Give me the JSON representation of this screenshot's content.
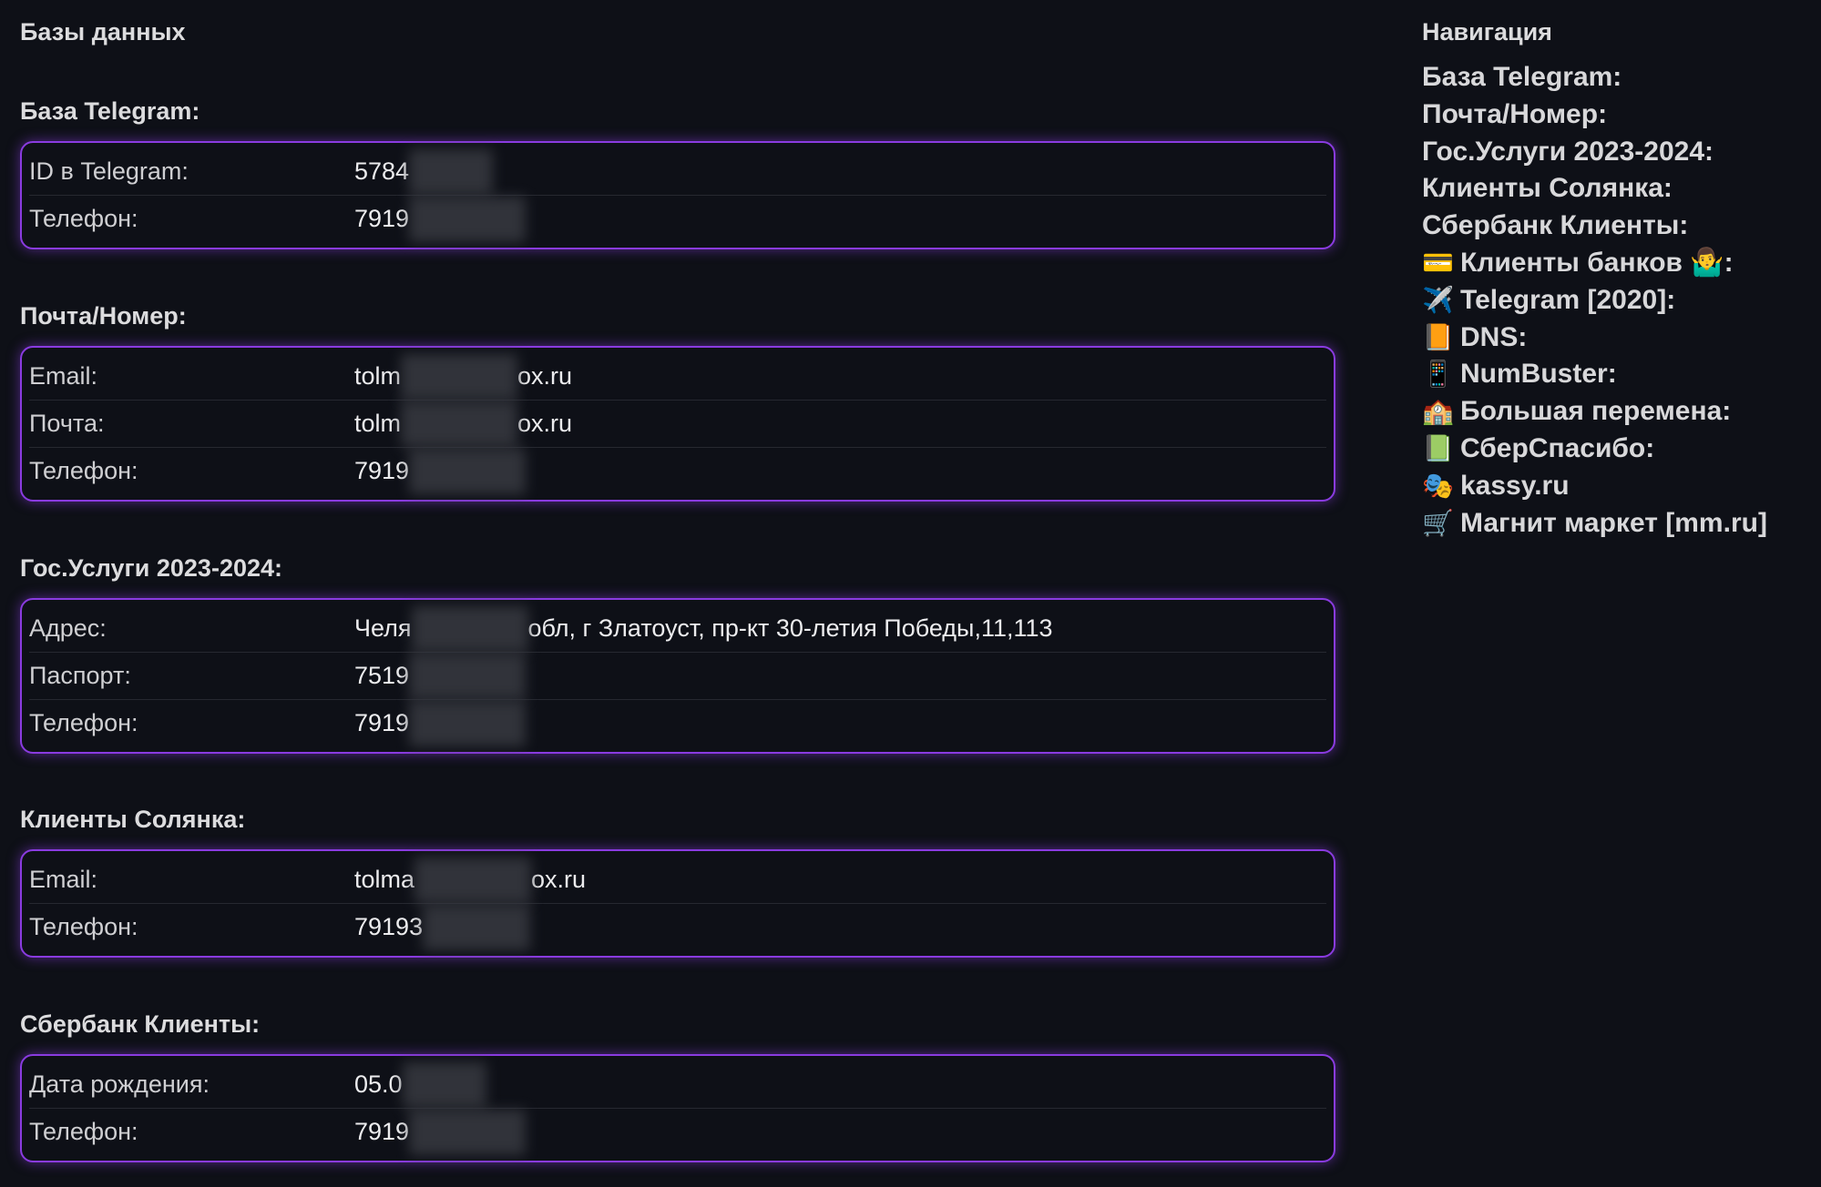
{
  "main": {
    "title": "Базы данных",
    "sections": [
      {
        "heading": "База Telegram:",
        "rows": [
          {
            "label": "ID в Telegram:",
            "value": "5784",
            "suffix": ""
          },
          {
            "label": "Телефон:",
            "value": "7919",
            "suffix": ""
          }
        ]
      },
      {
        "heading": "Почта/Номер:",
        "rows": [
          {
            "label": "Email:",
            "value": "tolm",
            "suffix": "ox.ru"
          },
          {
            "label": "Почта:",
            "value": "tolm",
            "suffix": "ox.ru"
          },
          {
            "label": "Телефон:",
            "value": "7919",
            "suffix": ""
          }
        ]
      },
      {
        "heading": "Гос.Услуги 2023-2024:",
        "rows": [
          {
            "label": "Адрес:",
            "value": "Челя",
            "suffix": "обл, г Златоуст, пр-кт 30-летия Победы,11,113"
          },
          {
            "label": "Паспорт:",
            "value": "7519",
            "suffix": ""
          },
          {
            "label": "Телефон:",
            "value": "7919",
            "suffix": ""
          }
        ]
      },
      {
        "heading": "Клиенты Солянка:",
        "rows": [
          {
            "label": "Email:",
            "value": "tolma",
            "suffix": "ox.ru"
          },
          {
            "label": "Телефон:",
            "value": "79193",
            "suffix": ""
          }
        ]
      },
      {
        "heading": "Сбербанк Клиенты:",
        "rows": [
          {
            "label": "Дата рождения:",
            "value": "05.0",
            "suffix": ""
          },
          {
            "label": "Телефон:",
            "value": "7919",
            "suffix": ""
          }
        ]
      }
    ]
  },
  "nav": {
    "title": "Навигация",
    "items": [
      {
        "icon": "",
        "icon_name": "",
        "label": "База Telegram:"
      },
      {
        "icon": "",
        "icon_name": "",
        "label": "Почта/Номер:"
      },
      {
        "icon": "",
        "icon_name": "",
        "label": "Гос.Услуги 2023-2024:"
      },
      {
        "icon": "",
        "icon_name": "",
        "label": "Клиенты Солянка:"
      },
      {
        "icon": "",
        "icon_name": "",
        "label": "Сбербанк Клиенты:"
      },
      {
        "icon": "💳",
        "icon_name": "credit-card-icon",
        "label": "Клиенты банков 🤷‍♂️:"
      },
      {
        "icon": "✈️",
        "icon_name": "airplane-icon",
        "label": "Telegram [2020]:"
      },
      {
        "icon": "📙",
        "icon_name": "orange-book-icon",
        "label": "DNS:"
      },
      {
        "icon": "📱",
        "icon_name": "phone-icon",
        "label": "NumBuster:"
      },
      {
        "icon": "🏫",
        "icon_name": "school-icon",
        "label": "Большая перемена:"
      },
      {
        "icon": "📗",
        "icon_name": "green-book-icon",
        "label": "СберСпасибо:"
      },
      {
        "icon": "🎭",
        "icon_name": "theater-masks-icon",
        "label": "kassy.ru"
      },
      {
        "icon": "🛒",
        "icon_name": "shopping-cart-icon",
        "label": "Магнит маркет [mm.ru]"
      }
    ]
  },
  "colors": {
    "background": "#0e1017",
    "accent": "#8a3be0"
  }
}
